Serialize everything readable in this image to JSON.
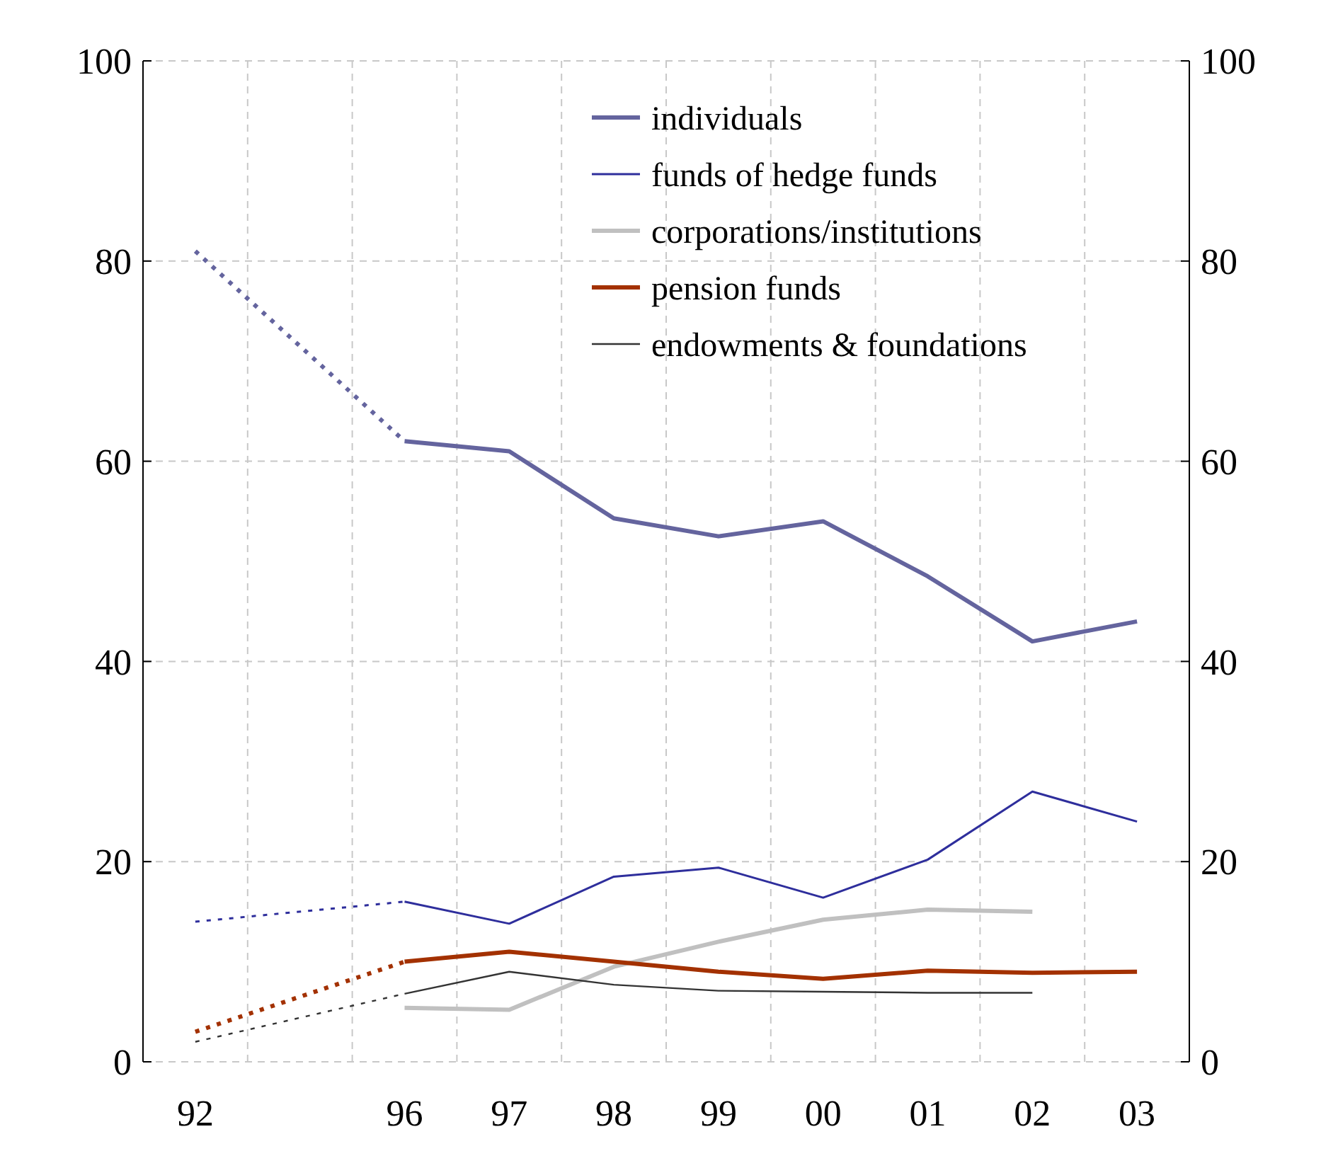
{
  "chart_data": {
    "type": "line",
    "categories": [
      "92",
      null,
      "96",
      "97",
      "98",
      "99",
      "00",
      "01",
      "02",
      "03"
    ],
    "series": [
      {
        "name": "individuals",
        "color": "#64649e",
        "values": [
          null,
          null,
          62,
          61,
          54.3,
          52.5,
          54,
          48.5,
          42,
          44
        ]
      },
      {
        "name": "funds of hedge funds",
        "color": "#2e2e9c",
        "values": [
          null,
          null,
          16,
          13.8,
          18.5,
          19.4,
          16.4,
          20.2,
          27,
          24
        ]
      },
      {
        "name": "corporations/institutions",
        "color": "#c0c0c0",
        "values": [
          null,
          null,
          5.4,
          5.2,
          9.5,
          12,
          14.2,
          15.2,
          15,
          null
        ]
      },
      {
        "name": "pension funds",
        "color": "#a33100",
        "values": [
          null,
          null,
          10,
          11,
          10,
          9,
          8.3,
          9.1,
          8.9,
          9
        ]
      },
      {
        "name": "endowments & foundations",
        "color": "#333333",
        "values": [
          null,
          null,
          6.8,
          9,
          7.7,
          7.1,
          7,
          6.9,
          6.9,
          null
        ]
      },
      {
        "color": "#64649e",
        "line_style": "dotted",
        "values": [
          81,
          null,
          62,
          null,
          null,
          null,
          null,
          null,
          null,
          null
        ]
      },
      {
        "color": "#2e2e9c",
        "line_style": "dotted",
        "values": [
          14,
          null,
          16,
          null,
          null,
          null,
          null,
          null,
          null,
          null
        ]
      },
      {
        "color": "#a33100",
        "line_style": "dotted",
        "values": [
          3,
          null,
          10,
          null,
          null,
          null,
          null,
          null,
          null,
          null
        ]
      },
      {
        "color": "#333333",
        "line_style": "dotted",
        "values": [
          2,
          null,
          6.8,
          null,
          null,
          null,
          null,
          null,
          null,
          null
        ]
      }
    ],
    "ylim": [
      0,
      100
    ],
    "yticks": [
      0,
      20,
      40,
      60,
      80,
      100
    ],
    "y2lim": [
      0,
      100
    ],
    "y2ticks": [
      0,
      20,
      40,
      60,
      80,
      100
    ],
    "grid": true,
    "legend": "top",
    "line_style": "solid"
  }
}
